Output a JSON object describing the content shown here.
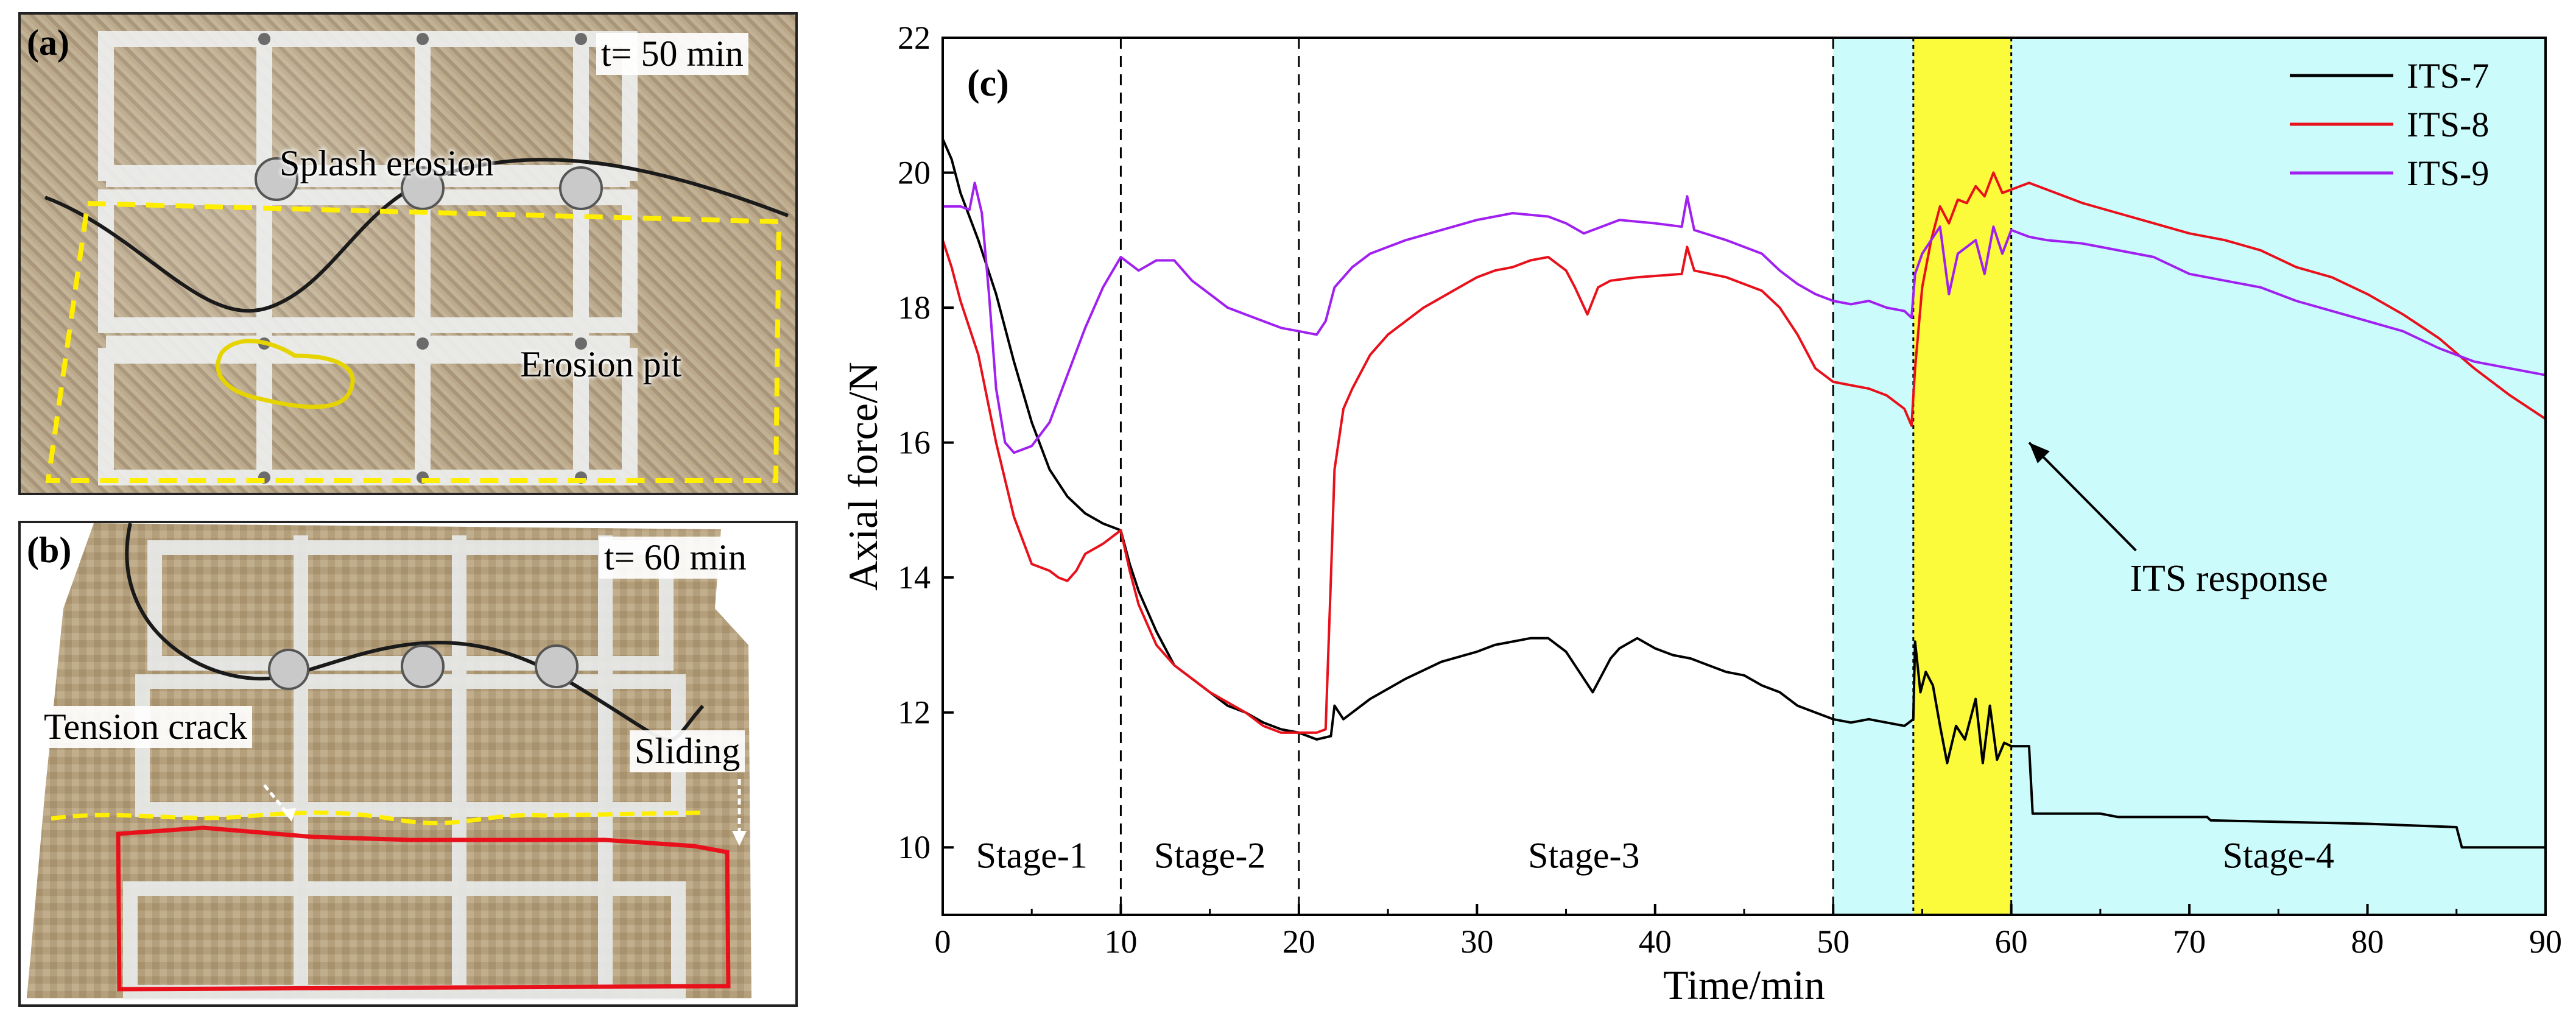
{
  "panel_a": {
    "tag": "(a)",
    "time": "t= 50 min",
    "labels": {
      "splash": "Splash erosion",
      "pit": "Erosion pit"
    },
    "colors": {
      "zone": "#ffee00",
      "pit": "#e6d400"
    }
  },
  "panel_b": {
    "tag": "(b)",
    "time": "t= 60 min",
    "labels": {
      "crack": "Tension crack",
      "sliding": "Sliding"
    },
    "colors": {
      "crack": "#ffee00",
      "slide": "#e8111b"
    }
  },
  "chart_data": {
    "type": "line",
    "panel_tag": "(c)",
    "xlabel": "Time/min",
    "ylabel": "Axial force/N",
    "xlim": [
      0,
      90
    ],
    "ylim": [
      9,
      22
    ],
    "xticks": [
      0,
      10,
      20,
      30,
      40,
      50,
      60,
      70,
      80,
      90
    ],
    "yticks": [
      10,
      12,
      14,
      16,
      18,
      20,
      22
    ],
    "stage_boundaries": [
      10,
      20,
      50,
      54.5,
      60
    ],
    "shaded_regions": [
      {
        "from": 50,
        "to": 90,
        "color": "#ccfbfb"
      },
      {
        "from": 54.5,
        "to": 60,
        "color": "#fbfb3b"
      }
    ],
    "stages": [
      {
        "label": "Stage-1",
        "x": 5
      },
      {
        "label": "Stage-2",
        "x": 15
      },
      {
        "label": "Stage-3",
        "x": 36
      },
      {
        "label": "Stage-4",
        "x": 75
      }
    ],
    "annotation": {
      "text": "ITS response",
      "arrow_from": [
        67,
        14.4
      ],
      "arrow_to": [
        61,
        16.0
      ]
    },
    "legend_position": "top-right",
    "series": [
      {
        "name": "ITS-7",
        "color": "#000000",
        "points": [
          [
            0,
            20.5
          ],
          [
            0.5,
            20.2
          ],
          [
            1,
            19.7
          ],
          [
            2,
            19.0
          ],
          [
            3,
            18.2
          ],
          [
            4,
            17.2
          ],
          [
            5,
            16.3
          ],
          [
            6,
            15.6
          ],
          [
            7,
            15.2
          ],
          [
            8,
            14.95
          ],
          [
            9,
            14.8
          ],
          [
            10,
            14.7
          ],
          [
            10.5,
            14.2
          ],
          [
            11,
            13.8
          ],
          [
            12,
            13.2
          ],
          [
            13,
            12.7
          ],
          [
            14,
            12.5
          ],
          [
            15,
            12.3
          ],
          [
            16,
            12.1
          ],
          [
            17,
            12.0
          ],
          [
            18,
            11.85
          ],
          [
            19,
            11.75
          ],
          [
            20,
            11.7
          ],
          [
            21,
            11.6
          ],
          [
            21.8,
            11.65
          ],
          [
            22,
            12.1
          ],
          [
            22.5,
            11.9
          ],
          [
            24,
            12.2
          ],
          [
            26,
            12.5
          ],
          [
            28,
            12.75
          ],
          [
            30,
            12.9
          ],
          [
            31,
            13.0
          ],
          [
            32,
            13.05
          ],
          [
            33,
            13.1
          ],
          [
            34,
            13.1
          ],
          [
            35,
            12.9
          ],
          [
            35.5,
            12.7
          ],
          [
            36.5,
            12.3
          ],
          [
            37.5,
            12.8
          ],
          [
            38,
            12.95
          ],
          [
            39,
            13.1
          ],
          [
            40,
            12.95
          ],
          [
            41,
            12.85
          ],
          [
            42,
            12.8
          ],
          [
            43,
            12.7
          ],
          [
            44,
            12.6
          ],
          [
            45,
            12.55
          ],
          [
            46,
            12.4
          ],
          [
            47,
            12.3
          ],
          [
            48,
            12.1
          ],
          [
            49,
            12.0
          ],
          [
            50,
            11.9
          ],
          [
            51,
            11.85
          ],
          [
            52,
            11.9
          ],
          [
            53,
            11.85
          ],
          [
            54,
            11.8
          ],
          [
            54.5,
            11.9
          ],
          [
            54.6,
            13.05
          ],
          [
            54.9,
            12.3
          ],
          [
            55.2,
            12.6
          ],
          [
            55.6,
            12.4
          ],
          [
            56,
            11.8
          ],
          [
            56.4,
            11.25
          ],
          [
            56.9,
            11.8
          ],
          [
            57.4,
            11.6
          ],
          [
            58,
            12.2
          ],
          [
            58.4,
            11.25
          ],
          [
            58.8,
            12.1
          ],
          [
            59.2,
            11.3
          ],
          [
            59.6,
            11.55
          ],
          [
            60,
            11.5
          ],
          [
            61,
            11.5
          ],
          [
            61.2,
            10.5
          ],
          [
            65,
            10.5
          ],
          [
            66,
            10.45
          ],
          [
            71,
            10.45
          ],
          [
            71.2,
            10.4
          ],
          [
            80,
            10.35
          ],
          [
            85,
            10.3
          ],
          [
            85.3,
            10.0
          ],
          [
            90,
            10.0
          ]
        ]
      },
      {
        "name": "ITS-8",
        "color": "#e8111b",
        "points": [
          [
            0,
            19.0
          ],
          [
            0.5,
            18.6
          ],
          [
            1,
            18.1
          ],
          [
            2,
            17.3
          ],
          [
            3,
            16.0
          ],
          [
            4,
            14.9
          ],
          [
            5,
            14.2
          ],
          [
            6,
            14.1
          ],
          [
            6.5,
            14.0
          ],
          [
            7,
            13.95
          ],
          [
            7.5,
            14.1
          ],
          [
            8,
            14.35
          ],
          [
            9,
            14.5
          ],
          [
            10,
            14.7
          ],
          [
            10.5,
            14.1
          ],
          [
            11,
            13.6
          ],
          [
            12,
            13.0
          ],
          [
            13,
            12.7
          ],
          [
            14,
            12.5
          ],
          [
            15,
            12.3
          ],
          [
            16,
            12.15
          ],
          [
            17,
            12.0
          ],
          [
            18,
            11.8
          ],
          [
            19,
            11.7
          ],
          [
            20,
            11.7
          ],
          [
            21,
            11.7
          ],
          [
            21.5,
            11.75
          ],
          [
            21.8,
            14.0
          ],
          [
            22,
            15.6
          ],
          [
            22.5,
            16.5
          ],
          [
            23,
            16.8
          ],
          [
            24,
            17.3
          ],
          [
            25,
            17.6
          ],
          [
            26,
            17.8
          ],
          [
            27,
            18.0
          ],
          [
            28,
            18.15
          ],
          [
            29,
            18.3
          ],
          [
            30,
            18.45
          ],
          [
            31,
            18.55
          ],
          [
            32,
            18.6
          ],
          [
            33,
            18.7
          ],
          [
            34,
            18.75
          ],
          [
            35,
            18.55
          ],
          [
            35.5,
            18.3
          ],
          [
            36.2,
            17.9
          ],
          [
            36.8,
            18.3
          ],
          [
            37.5,
            18.4
          ],
          [
            39,
            18.45
          ],
          [
            41.5,
            18.5
          ],
          [
            41.8,
            18.9
          ],
          [
            42.2,
            18.55
          ],
          [
            44,
            18.45
          ],
          [
            46,
            18.25
          ],
          [
            47,
            18.0
          ],
          [
            48,
            17.6
          ],
          [
            49,
            17.1
          ],
          [
            50,
            16.9
          ],
          [
            51,
            16.85
          ],
          [
            52,
            16.8
          ],
          [
            53,
            16.7
          ],
          [
            54,
            16.5
          ],
          [
            54.4,
            16.25
          ],
          [
            54.6,
            17.1
          ],
          [
            55,
            18.3
          ],
          [
            55.5,
            19.0
          ],
          [
            56,
            19.5
          ],
          [
            56.5,
            19.25
          ],
          [
            57,
            19.6
          ],
          [
            57.5,
            19.55
          ],
          [
            58,
            19.8
          ],
          [
            58.5,
            19.65
          ],
          [
            59,
            20.0
          ],
          [
            59.5,
            19.7
          ],
          [
            60,
            19.75
          ],
          [
            61,
            19.85
          ],
          [
            62,
            19.75
          ],
          [
            64,
            19.55
          ],
          [
            66,
            19.4
          ],
          [
            68,
            19.25
          ],
          [
            70,
            19.1
          ],
          [
            72,
            19.0
          ],
          [
            74,
            18.85
          ],
          [
            76,
            18.6
          ],
          [
            78,
            18.45
          ],
          [
            80,
            18.2
          ],
          [
            82,
            17.9
          ],
          [
            84,
            17.55
          ],
          [
            86,
            17.1
          ],
          [
            88,
            16.7
          ],
          [
            90,
            16.35
          ]
        ]
      },
      {
        "name": "ITS-9",
        "color": "#a020f0",
        "points": [
          [
            0,
            19.5
          ],
          [
            1,
            19.5
          ],
          [
            1.5,
            19.45
          ],
          [
            1.8,
            19.85
          ],
          [
            2.2,
            19.4
          ],
          [
            2.6,
            18.2
          ],
          [
            3,
            16.8
          ],
          [
            3.5,
            16.0
          ],
          [
            4,
            15.85
          ],
          [
            5,
            15.95
          ],
          [
            6,
            16.3
          ],
          [
            7,
            17.0
          ],
          [
            8,
            17.7
          ],
          [
            9,
            18.3
          ],
          [
            10,
            18.75
          ],
          [
            11,
            18.55
          ],
          [
            12,
            18.7
          ],
          [
            13,
            18.7
          ],
          [
            14,
            18.4
          ],
          [
            15,
            18.2
          ],
          [
            16,
            18.0
          ],
          [
            17,
            17.9
          ],
          [
            18,
            17.8
          ],
          [
            19,
            17.7
          ],
          [
            20,
            17.65
          ],
          [
            21,
            17.6
          ],
          [
            21.5,
            17.8
          ],
          [
            22,
            18.3
          ],
          [
            23,
            18.6
          ],
          [
            24,
            18.8
          ],
          [
            26,
            19.0
          ],
          [
            28,
            19.15
          ],
          [
            30,
            19.3
          ],
          [
            32,
            19.4
          ],
          [
            34,
            19.35
          ],
          [
            35,
            19.25
          ],
          [
            36,
            19.1
          ],
          [
            37,
            19.2
          ],
          [
            38,
            19.3
          ],
          [
            40,
            19.25
          ],
          [
            41.5,
            19.2
          ],
          [
            41.8,
            19.65
          ],
          [
            42.2,
            19.15
          ],
          [
            44,
            19.0
          ],
          [
            46,
            18.8
          ],
          [
            47,
            18.55
          ],
          [
            48,
            18.35
          ],
          [
            49,
            18.2
          ],
          [
            50,
            18.1
          ],
          [
            51,
            18.05
          ],
          [
            52,
            18.1
          ],
          [
            53,
            18.0
          ],
          [
            54,
            17.95
          ],
          [
            54.4,
            17.85
          ],
          [
            54.6,
            18.5
          ],
          [
            55,
            18.8
          ],
          [
            55.5,
            19.0
          ],
          [
            56,
            19.2
          ],
          [
            56.5,
            18.2
          ],
          [
            57,
            18.8
          ],
          [
            57.5,
            18.9
          ],
          [
            58,
            19.0
          ],
          [
            58.5,
            18.5
          ],
          [
            59,
            19.2
          ],
          [
            59.5,
            18.8
          ],
          [
            60,
            19.15
          ],
          [
            61,
            19.05
          ],
          [
            62,
            19.0
          ],
          [
            64,
            18.95
          ],
          [
            66,
            18.85
          ],
          [
            68,
            18.75
          ],
          [
            70,
            18.5
          ],
          [
            72,
            18.4
          ],
          [
            74,
            18.3
          ],
          [
            76,
            18.1
          ],
          [
            78,
            17.95
          ],
          [
            80,
            17.8
          ],
          [
            82,
            17.65
          ],
          [
            84,
            17.4
          ],
          [
            86,
            17.2
          ],
          [
            88,
            17.1
          ],
          [
            90,
            17.0
          ]
        ]
      }
    ]
  }
}
